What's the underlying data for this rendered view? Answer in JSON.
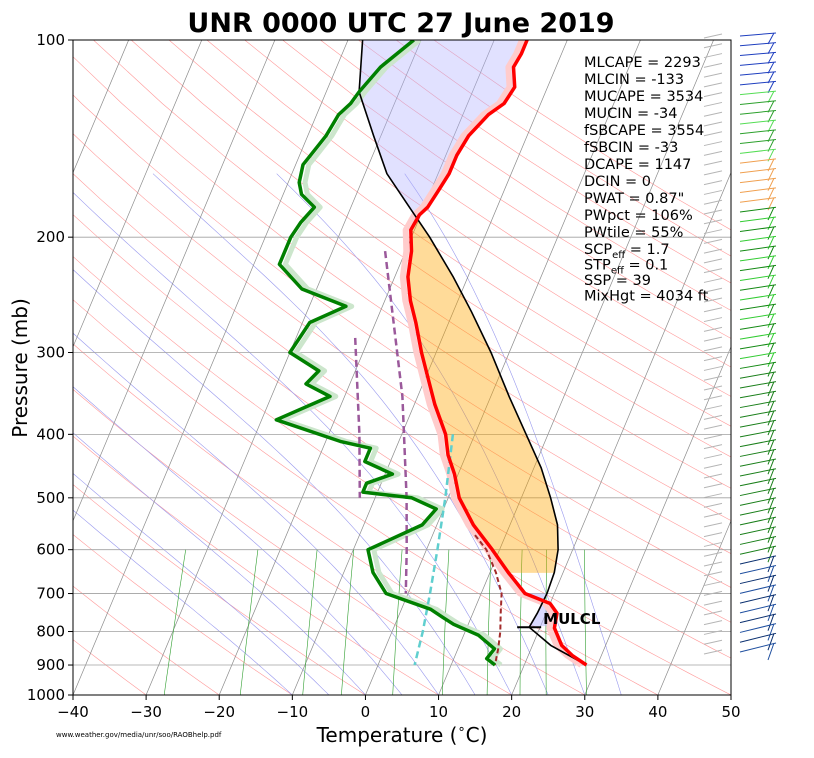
{
  "chart_data": {
    "type": "skew-t log-p sounding",
    "title": "UNR 0000 UTC 27 June 2019",
    "xlabel": "Temperature ($^\\circ$C)",
    "xlabel_text": "Temperature (",
    "xlabel_unit": "C)",
    "ylabel": "Pressure (mb)",
    "x_ticks": [
      "−40",
      "−30",
      "−20",
      "−10",
      "0",
      "10",
      "20",
      "30",
      "40",
      "50"
    ],
    "x_tick_values": [
      -40,
      -30,
      -20,
      -10,
      0,
      10,
      20,
      30,
      40,
      50
    ],
    "xlim": [
      -40,
      50
    ],
    "y_ticks": [
      "100",
      "200",
      "300",
      "400",
      "500",
      "600",
      "700",
      "800",
      "900",
      "1000"
    ],
    "y_tick_values": [
      100,
      200,
      300,
      400,
      500,
      600,
      700,
      800,
      900,
      1000
    ],
    "ylim": [
      1000,
      100
    ],
    "y_scale": "log",
    "source_text": "www.weather.gov/media/unr/soo/RAOBhelp.pdf",
    "lcl_label": "MULCL",
    "lcl": {
      "pressure": 788,
      "temperature": 18.5
    },
    "colors": {
      "temperature": "#ff0000",
      "dewpoint": "#008000",
      "temperature_shadow": "#ffcccc",
      "dewpoint_shadow": "#cce6cc",
      "parcel": "#000000",
      "cape_fill": "#ffa500",
      "cin_fill": "#b4b4ff",
      "dgz": "#9b599b",
      "hgz": "#5fcfcf",
      "wetbulb": "#a32a2a",
      "mlcape_text": "#ff0000",
      "ssp_text": "#ff00ff"
    },
    "indices": [
      {
        "label": "MLCAPE = 2293",
        "color": "#ff0000"
      },
      {
        "label": "MLCIN = -133",
        "color": "#000000"
      },
      {
        "label": "MUCAPE = 3534",
        "color": "#000000"
      },
      {
        "label": "MUCIN = -34",
        "color": "#000000"
      },
      {
        "label": "fSBCAPE = 3554",
        "color": "#000000"
      },
      {
        "label": "fSBCIN = -33",
        "color": "#000000"
      },
      {
        "label": "DCAPE = 1147",
        "color": "#000000"
      },
      {
        "label": "DCIN = 0",
        "color": "#000000"
      },
      {
        "label": "PWAT = 0.87\"",
        "color": "#000000"
      },
      {
        "label": "PWpct = 106%",
        "color": "#000000"
      },
      {
        "label": "PWtile = 55%",
        "color": "#000000"
      },
      {
        "label": "SCP",
        "sub": "eff",
        "value": " = 1.7",
        "color": "#000000"
      },
      {
        "label": "STP",
        "sub": "eff",
        "value": " = 0.1",
        "color": "#000000"
      },
      {
        "label": "SSP = 39",
        "color": "#ff00ff"
      },
      {
        "label": "MixHgt = 4034 ft",
        "color": "#000000"
      }
    ],
    "series": [
      {
        "name": "temperature",
        "points": [
          [
            100,
            -15.5
          ],
          [
            105,
            -15.5
          ],
          [
            110,
            -15.8
          ],
          [
            118,
            -14.5
          ],
          [
            125,
            -15
          ],
          [
            130,
            -16.5
          ],
          [
            140,
            -18
          ],
          [
            150,
            -18.5
          ],
          [
            160,
            -18.5
          ],
          [
            170,
            -19
          ],
          [
            180,
            -19.5
          ],
          [
            185,
            -20.2
          ],
          [
            195,
            -20.5
          ],
          [
            210,
            -19.2
          ],
          [
            230,
            -18.2
          ],
          [
            250,
            -16.5
          ],
          [
            270,
            -14.5
          ],
          [
            300,
            -12
          ],
          [
            330,
            -9.5
          ],
          [
            360,
            -7.2
          ],
          [
            400,
            -4
          ],
          [
            430,
            -2.5
          ],
          [
            460,
            -0.5
          ],
          [
            500,
            1.5
          ],
          [
            550,
            5
          ],
          [
            600,
            9
          ],
          [
            650,
            12.5
          ],
          [
            700,
            16
          ],
          [
            725,
            20
          ],
          [
            750,
            21.5
          ],
          [
            790,
            22
          ],
          [
            840,
            24
          ],
          [
            870,
            26
          ],
          [
            900,
            28.5
          ]
        ]
      },
      {
        "name": "dewpoint",
        "points": [
          [
            100,
            -31
          ],
          [
            110,
            -34
          ],
          [
            120,
            -35.5
          ],
          [
            125,
            -36
          ],
          [
            130,
            -37
          ],
          [
            140,
            -37.5
          ],
          [
            150,
            -38.5
          ],
          [
            155,
            -39
          ],
          [
            165,
            -38.5
          ],
          [
            172,
            -37.5
          ],
          [
            180,
            -35
          ],
          [
            190,
            -36
          ],
          [
            200,
            -36.5
          ],
          [
            220,
            -36.5
          ],
          [
            240,
            -32
          ],
          [
            255,
            -25
          ],
          [
            270,
            -29
          ],
          [
            300,
            -30
          ],
          [
            320,
            -25
          ],
          [
            335,
            -26
          ],
          [
            350,
            -22
          ],
          [
            380,
            -28
          ],
          [
            410,
            -18
          ],
          [
            420,
            -13.5
          ],
          [
            440,
            -13.5
          ],
          [
            460,
            -9
          ],
          [
            475,
            -12
          ],
          [
            490,
            -12
          ],
          [
            500,
            -5
          ],
          [
            520,
            -1
          ],
          [
            550,
            -2
          ],
          [
            600,
            -8
          ],
          [
            650,
            -6
          ],
          [
            700,
            -3
          ],
          [
            740,
            4
          ],
          [
            760,
            6
          ],
          [
            780,
            8
          ],
          [
            810,
            12
          ],
          [
            850,
            15
          ],
          [
            880,
            14.5
          ],
          [
            900,
            16
          ]
        ]
      },
      {
        "name": "parcel",
        "points": [
          [
            100,
            -38
          ],
          [
            120,
            -35.5
          ],
          [
            140,
            -31
          ],
          [
            160,
            -27
          ],
          [
            180,
            -22
          ],
          [
            200,
            -17.5
          ],
          [
            230,
            -12
          ],
          [
            260,
            -7.5
          ],
          [
            300,
            -2.5
          ],
          [
            350,
            2.5
          ],
          [
            400,
            7
          ],
          [
            450,
            11
          ],
          [
            500,
            14
          ],
          [
            550,
            16.5
          ],
          [
            600,
            18
          ],
          [
            650,
            18.8
          ],
          [
            700,
            19
          ],
          [
            750,
            18.8
          ],
          [
            788,
            18.5
          ],
          [
            840,
            22.5
          ],
          [
            900,
            28.5
          ]
        ]
      },
      {
        "name": "wetbulb",
        "points": [
          [
            570,
            5.8
          ],
          [
            600,
            8.2
          ],
          [
            650,
            10.8
          ],
          [
            700,
            12.8
          ],
          [
            750,
            13.8
          ],
          [
            800,
            14.8
          ],
          [
            850,
            15.5
          ],
          [
            900,
            16
          ]
        ]
      },
      {
        "name": "dgz",
        "points": [
          [
            210,
            -22.8
          ],
          [
            350,
            -12.1
          ],
          [
            500,
            -5.7
          ],
          [
            600,
            -2.7
          ],
          [
            700,
            -0.3
          ]
        ]
      },
      {
        "name": "dgz_upper",
        "points": [
          [
            285,
            -21.9
          ],
          [
            400,
            -15.8
          ],
          [
            500,
            -12.1
          ]
        ]
      },
      {
        "name": "hgz",
        "points": [
          [
            400,
            -3
          ],
          [
            500,
            -0.4
          ],
          [
            600,
            1.5
          ],
          [
            700,
            3
          ],
          [
            800,
            4.2
          ],
          [
            900,
            5
          ]
        ]
      }
    ],
    "winds_levels": 64
  }
}
